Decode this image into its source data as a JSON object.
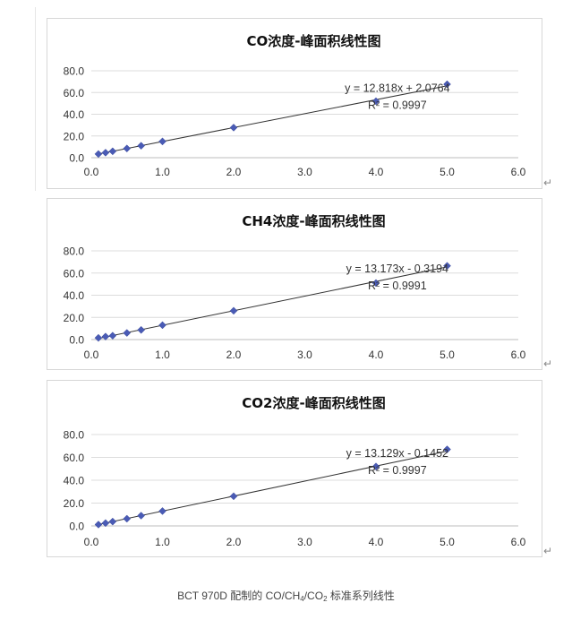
{
  "chart_data": [
    {
      "type": "scatter",
      "title": "CO浓度-峰面积线性图",
      "x": [
        0.1,
        0.2,
        0.3,
        0.5,
        0.7,
        1.0,
        2.0,
        4.0,
        5.0
      ],
      "y": [
        3.4,
        4.6,
        5.9,
        8.5,
        11.0,
        15.0,
        27.7,
        52.0,
        67.6
      ],
      "xlim": [
        0,
        6
      ],
      "ylim": [
        0,
        80
      ],
      "x_ticks": [
        "0.0",
        "1.0",
        "2.0",
        "3.0",
        "4.0",
        "5.0",
        "6.0"
      ],
      "y_ticks": [
        "0.0",
        "20.0",
        "40.0",
        "60.0",
        "80.0"
      ],
      "trendline": {
        "slope": 12.818,
        "intercept": 2.0764
      },
      "equation": "y = 12.818x + 2.0764",
      "r2": "R² = 0.9997",
      "grid": "horizontal",
      "marker_color": "#4a5bb5"
    },
    {
      "type": "scatter",
      "title": "CH4浓度-峰面积线性图",
      "x": [
        0.1,
        0.2,
        0.3,
        0.5,
        0.7,
        1.0,
        2.0,
        4.0,
        5.0
      ],
      "y": [
        1.5,
        2.7,
        3.5,
        6.0,
        8.7,
        13.0,
        26.0,
        51.0,
        66.5
      ],
      "xlim": [
        0,
        6
      ],
      "ylim": [
        0,
        80
      ],
      "x_ticks": [
        "0.0",
        "1.0",
        "2.0",
        "3.0",
        "4.0",
        "5.0",
        "6.0"
      ],
      "y_ticks": [
        "0.0",
        "20.0",
        "40.0",
        "60.0",
        "80.0"
      ],
      "trendline": {
        "slope": 13.173,
        "intercept": -0.3194
      },
      "equation": "y = 13.173x - 0.3194",
      "r2": "R² = 0.9991",
      "grid": "horizontal",
      "marker_color": "#4a5bb5"
    },
    {
      "type": "scatter",
      "title": "CO2浓度-峰面积线性图",
      "x": [
        0.1,
        0.2,
        0.3,
        0.5,
        0.7,
        1.0,
        2.0,
        4.0,
        5.0
      ],
      "y": [
        1.2,
        2.5,
        3.8,
        6.3,
        9.0,
        13.0,
        26.0,
        52.0,
        67.0
      ],
      "xlim": [
        0,
        6
      ],
      "ylim": [
        0,
        80
      ],
      "x_ticks": [
        "0.0",
        "1.0",
        "2.0",
        "3.0",
        "4.0",
        "5.0",
        "6.0"
      ],
      "y_ticks": [
        "0.0",
        "20.0",
        "40.0",
        "60.0",
        "80.0"
      ],
      "trendline": {
        "slope": 13.129,
        "intercept": -0.1452
      },
      "equation": "y = 13.129x - 0.1452",
      "r2": "R² = 0.9997",
      "grid": "horizontal",
      "marker_color": "#4a5bb5"
    }
  ],
  "caption": {
    "prefix": "BCT 970D 配制的 CO/CH",
    "sub1": "4",
    "middle": "/CO",
    "sub2": "2",
    "suffix": " 标准系列线性"
  },
  "return_mark": "↵"
}
